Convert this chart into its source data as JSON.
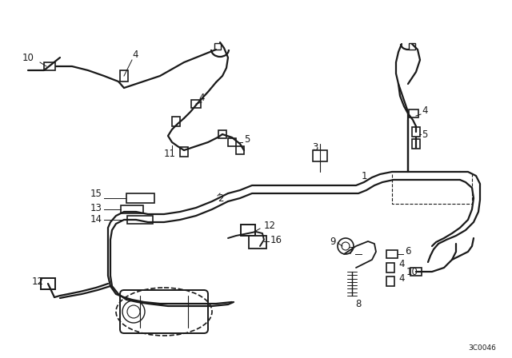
{
  "bg_color": "#ffffff",
  "line_color": "#1a1a1a",
  "diagram_code": "3C0046",
  "figsize": [
    6.4,
    4.48
  ],
  "dpi": 100
}
